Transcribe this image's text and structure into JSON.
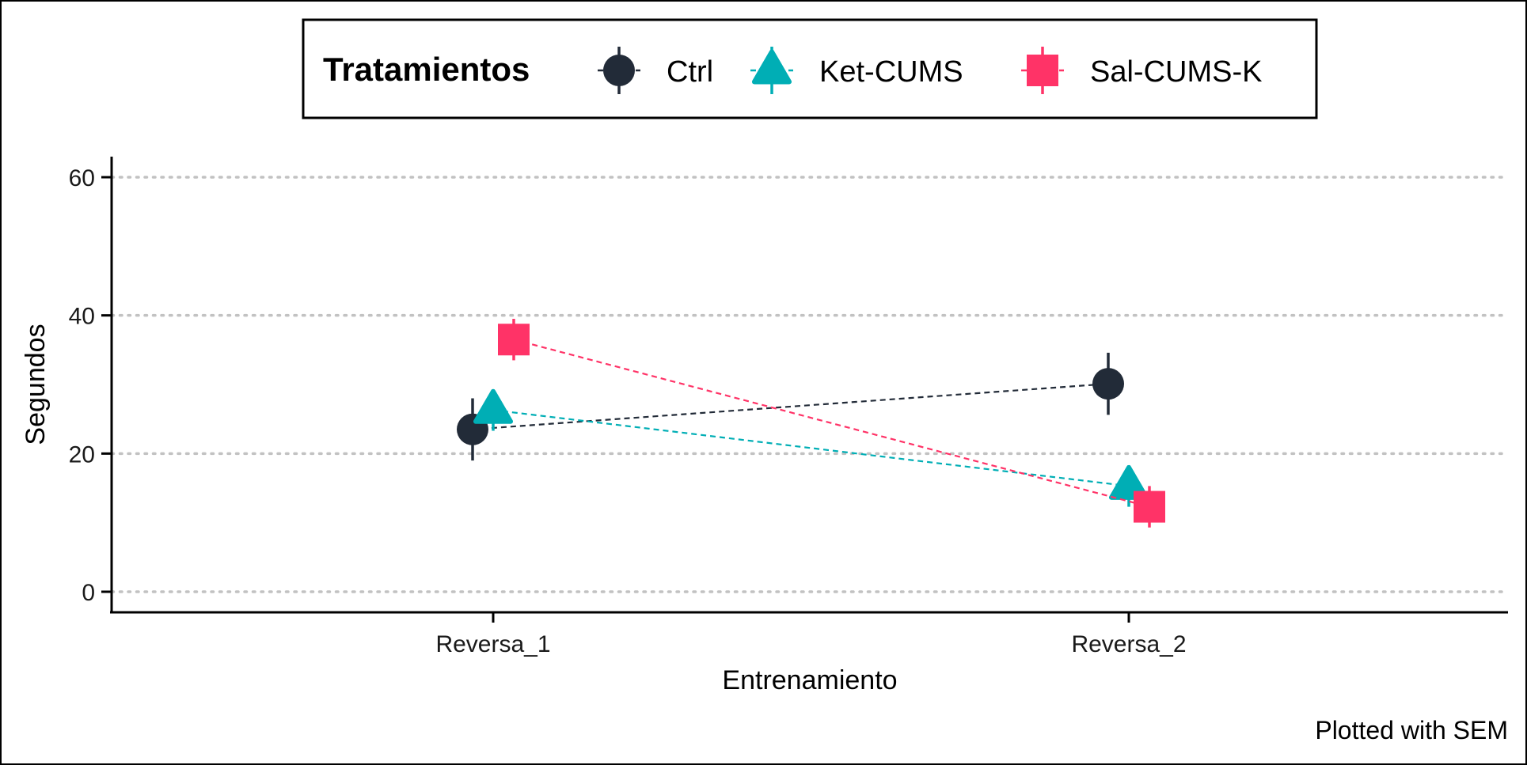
{
  "chart_data": {
    "type": "line",
    "xlabel": "Entrenamiento",
    "ylabel": "Segundos",
    "ylim": [
      0,
      60
    ],
    "yticks": [
      0,
      20,
      40,
      60
    ],
    "categories": [
      "Reversa_1",
      "Reversa_2"
    ],
    "grid": "horizontal dotted",
    "legend_title": "Tratamientos",
    "legend_position": "top",
    "caption": "Plotted with SEM",
    "error_bars": "SEM",
    "series": [
      {
        "name": "Ctrl",
        "marker": "circle",
        "color": "#222b38",
        "values": [
          23.5,
          30.1
        ],
        "sem": [
          4.5,
          4.5
        ]
      },
      {
        "name": "Ket-CUMS",
        "marker": "triangle",
        "color": "#00aeb5",
        "values": [
          26.3,
          15.3
        ],
        "sem": [
          3.0,
          3.0
        ]
      },
      {
        "name": "Sal-CUMS-K",
        "marker": "square",
        "color": "#ff3367",
        "values": [
          36.5,
          12.3
        ],
        "sem": [
          3.0,
          3.0
        ]
      }
    ]
  }
}
